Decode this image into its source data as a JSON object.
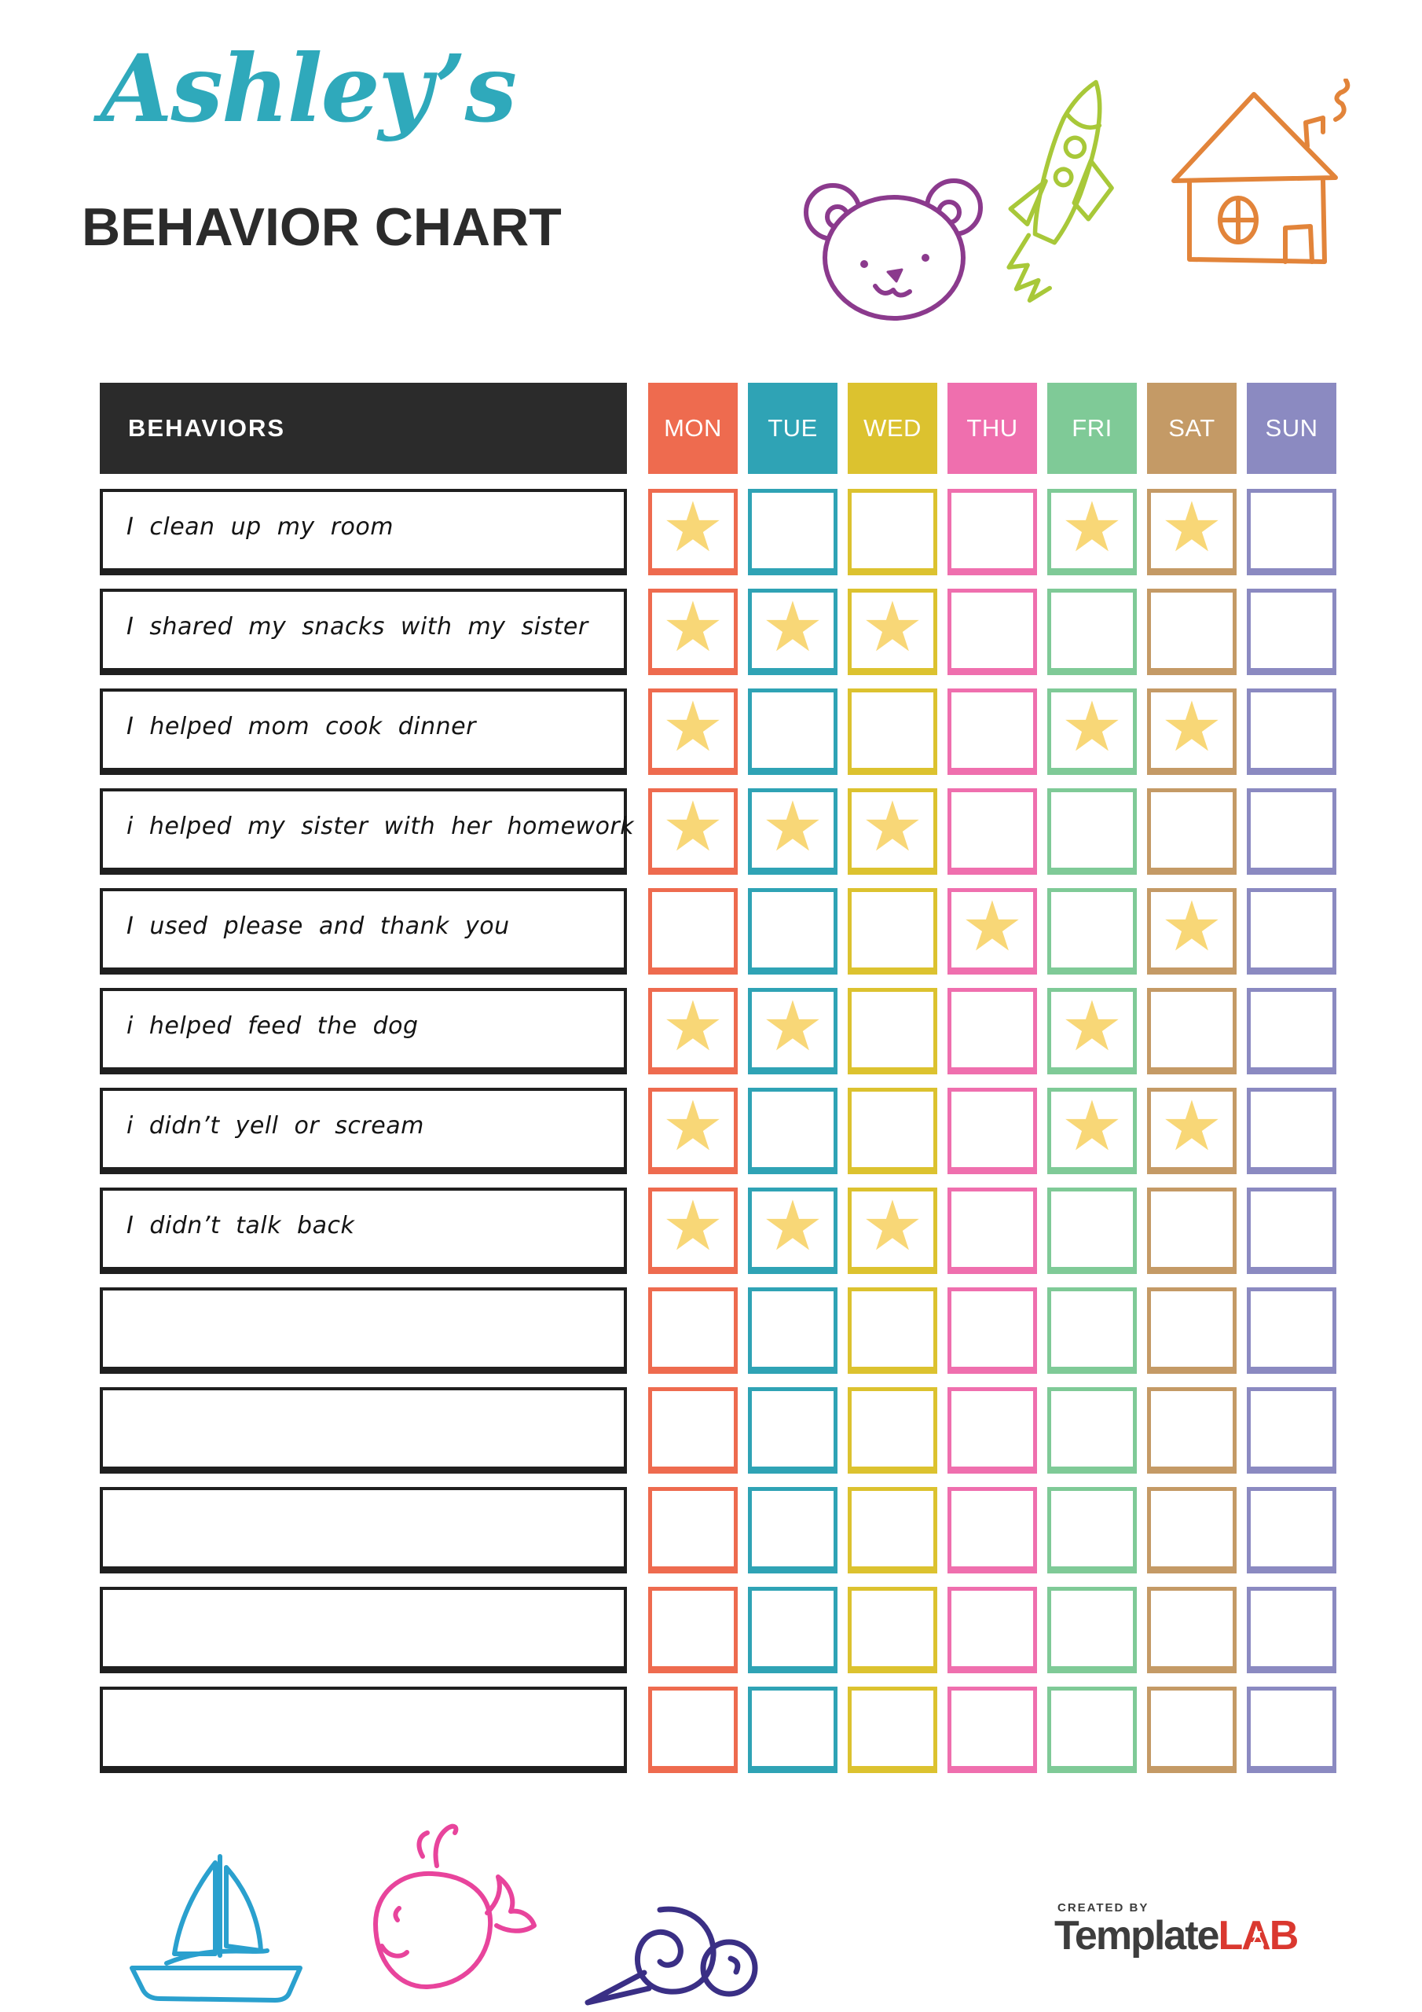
{
  "header": {
    "name": "Ashley’s",
    "title": "BEHAVIOR CHART"
  },
  "colors": {
    "title_script": "#2fa9bb",
    "title_main": "#2b2b2b",
    "behaviors_bg": "#2b2b2b",
    "star": "#f8d777",
    "bear": "#8b3a8d",
    "rocket": "#a8c839",
    "house": "#e2843a",
    "sailboat": "#2aa0ce",
    "whale": "#e8449c",
    "snail": "#3a2f85",
    "credit": "#3d3d3d",
    "brand_dark": "#3d3d3d",
    "brand_red": "#da382f"
  },
  "table": {
    "behaviors_header": "BEHAVIORS",
    "star_glyph": "★",
    "days": [
      {
        "label": "MON",
        "color": "#ee6b4f"
      },
      {
        "label": "TUE",
        "color": "#2fa3b5"
      },
      {
        "label": "WED",
        "color": "#dcc22f"
      },
      {
        "label": "THU",
        "color": "#ef6fae"
      },
      {
        "label": "FRI",
        "color": "#7fca97"
      },
      {
        "label": "SAT",
        "color": "#c49a66"
      },
      {
        "label": "SUN",
        "color": "#8b8ac1"
      }
    ],
    "rows": [
      {
        "behavior": "I clean up my room",
        "stars": [
          "MON",
          "FRI",
          "SAT"
        ]
      },
      {
        "behavior": "I shared my snacks with my sister",
        "stars": [
          "MON",
          "TUE",
          "WED"
        ]
      },
      {
        "behavior": "I helped mom cook dinner",
        "stars": [
          "MON",
          "FRI",
          "SAT"
        ]
      },
      {
        "behavior": "i helped my sister with her homework",
        "stars": [
          "MON",
          "TUE",
          "WED"
        ]
      },
      {
        "behavior": "I used please and thank you",
        "stars": [
          "THU",
          "SAT"
        ]
      },
      {
        "behavior": "i helped feed the dog",
        "stars": [
          "MON",
          "TUE",
          "FRI"
        ]
      },
      {
        "behavior": "i didn’t yell or scream",
        "stars": [
          "MON",
          "FRI",
          "SAT"
        ]
      },
      {
        "behavior": "I didn’t talk back",
        "stars": [
          "MON",
          "TUE",
          "WED"
        ]
      },
      {
        "behavior": "",
        "stars": []
      },
      {
        "behavior": "",
        "stars": []
      },
      {
        "behavior": "",
        "stars": []
      },
      {
        "behavior": "",
        "stars": []
      },
      {
        "behavior": "",
        "stars": []
      }
    ]
  },
  "decorations": {
    "top_icons": [
      "bear-icon",
      "rocket-icon",
      "house-icon"
    ],
    "bottom_icons": [
      "sailboat-icon",
      "whale-icon",
      "snail-icon"
    ]
  },
  "footer": {
    "credit_small": "CREATED BY",
    "brand_part1": "Template",
    "brand_part2": "LAB"
  }
}
